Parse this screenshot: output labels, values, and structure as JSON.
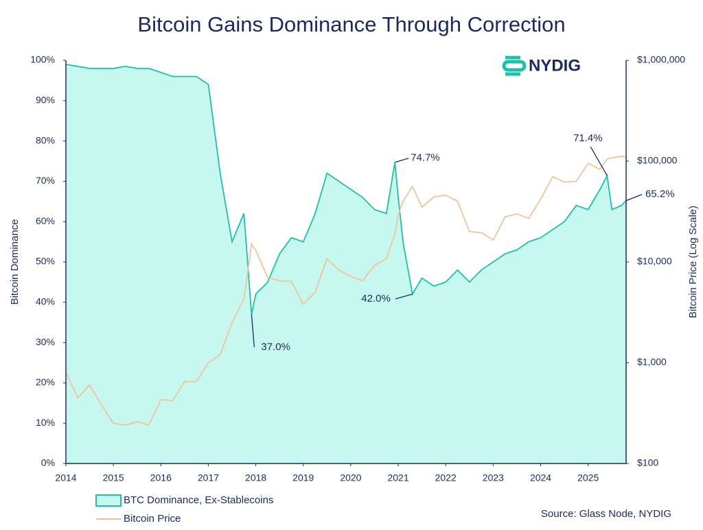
{
  "chart_data": {
    "type": "area",
    "title": "Bitcoin Gains Dominance Through Correction",
    "logo": "NYDIG",
    "source": "Source: Glass Node, NYDIG",
    "ylabel": "Bitcoin Dominance",
    "y2label": "Bitcoin Price (Log Scale)",
    "x": [
      2014,
      2014.25,
      2014.5,
      2014.75,
      2015,
      2015.25,
      2015.5,
      2015.75,
      2016,
      2016.25,
      2016.5,
      2016.75,
      2017,
      2017.25,
      2017.5,
      2017.75,
      2017.91,
      2018,
      2018.25,
      2018.5,
      2018.75,
      2019,
      2019.25,
      2019.5,
      2019.75,
      2020,
      2020.25,
      2020.5,
      2020.75,
      2020.93,
      2021,
      2021.1,
      2021.3,
      2021.5,
      2021.75,
      2022,
      2022.25,
      2022.5,
      2022.75,
      2023,
      2023.25,
      2023.5,
      2023.75,
      2024,
      2024.25,
      2024.5,
      2024.75,
      2025,
      2025.25,
      2025.4,
      2025.5,
      2025.7,
      2025.8
    ],
    "xlim": [
      2014,
      2025.8
    ],
    "xticks": [
      2014,
      2015,
      2016,
      2017,
      2018,
      2019,
      2020,
      2021,
      2022,
      2023,
      2024,
      2025
    ],
    "ylim": [
      0,
      100
    ],
    "yticks": [
      {
        "value": 0,
        "label": "0%"
      },
      {
        "value": 10,
        "label": "10%"
      },
      {
        "value": 20,
        "label": "20%"
      },
      {
        "value": 30,
        "label": "30%"
      },
      {
        "value": 40,
        "label": "40%"
      },
      {
        "value": 50,
        "label": "50%"
      },
      {
        "value": 60,
        "label": "60%"
      },
      {
        "value": 70,
        "label": "70%"
      },
      {
        "value": 80,
        "label": "80%"
      },
      {
        "value": 90,
        "label": "90%"
      },
      {
        "value": 100,
        "label": "100%"
      }
    ],
    "y2lim": [
      100,
      1000000
    ],
    "y2log": true,
    "y2ticks": [
      {
        "value": 100,
        "label": "$100"
      },
      {
        "value": 1000,
        "label": "$1,000"
      },
      {
        "value": 10000,
        "label": "$10,000"
      },
      {
        "value": 100000,
        "label": "$100,000"
      },
      {
        "value": 1000000,
        "label": "$1,000,000"
      }
    ],
    "series": [
      {
        "name": "BTC Dominance, Ex-Stablecoins",
        "type": "area",
        "color": "#1fbfa9",
        "fill": "#c6f8ef",
        "values": [
          99,
          98.5,
          98,
          98,
          98,
          98.5,
          98,
          98,
          97,
          96,
          96,
          96,
          94,
          72,
          55,
          62,
          37,
          42,
          45,
          52,
          56,
          55,
          62,
          72,
          70,
          68,
          66,
          63,
          62,
          74.7,
          66,
          55,
          42,
          46,
          44,
          45,
          48,
          45,
          48,
          50,
          52,
          53,
          55,
          56,
          58,
          60,
          64,
          63,
          68,
          71.4,
          63,
          64,
          65.2
        ],
        "value_labels": [
          null,
          null,
          null,
          null,
          null,
          null,
          null,
          null,
          null,
          null,
          null,
          null,
          null,
          null,
          null,
          null,
          "37.0%",
          null,
          null,
          null,
          null,
          null,
          null,
          null,
          null,
          null,
          null,
          null,
          null,
          "74.7%",
          null,
          null,
          "42.0%",
          null,
          null,
          null,
          null,
          null,
          null,
          null,
          null,
          null,
          null,
          null,
          null,
          null,
          null,
          null,
          null,
          "71.4%",
          null,
          null,
          "65.2%"
        ]
      },
      {
        "name": "Bitcoin Price",
        "type": "line",
        "axis": "y2",
        "color": "#efc49a",
        "values": [
          800,
          450,
          600,
          380,
          250,
          240,
          260,
          240,
          430,
          420,
          650,
          650,
          1000,
          1200,
          2500,
          4300,
          15000,
          13000,
          7000,
          6500,
          6400,
          3800,
          5000,
          10800,
          8300,
          7200,
          6500,
          9200,
          10800,
          19000,
          29000,
          40000,
          56000,
          35000,
          44000,
          46000,
          40000,
          20000,
          19500,
          16500,
          28000,
          30000,
          27000,
          42000,
          70000,
          62000,
          63000,
          95000,
          83000,
          105000,
          108000,
          112000,
          110000
        ]
      }
    ]
  }
}
